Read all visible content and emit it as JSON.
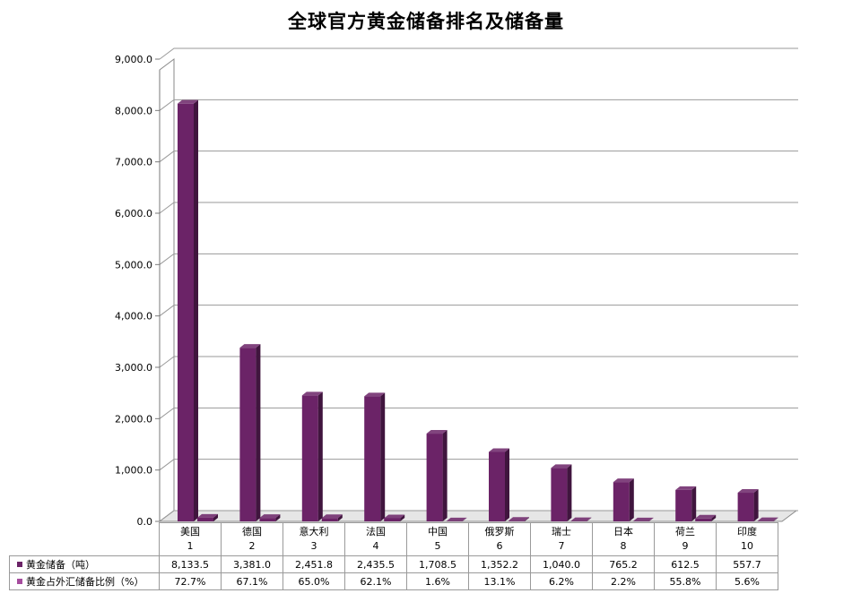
{
  "chart_data": {
    "type": "bar",
    "title": "全球官方黄金储备排名及储备量",
    "categories": [
      "美国",
      "德国",
      "意大利",
      "法国",
      "中国",
      "俄罗斯",
      "瑞士",
      "日本",
      "荷兰",
      "印度"
    ],
    "ranks": [
      "1",
      "2",
      "3",
      "4",
      "5",
      "6",
      "7",
      "8",
      "9",
      "10"
    ],
    "series": [
      {
        "name": "黄金储备（吨）",
        "values": [
          8133.5,
          3381.0,
          2451.8,
          2435.5,
          1708.5,
          1352.2,
          1040.0,
          765.2,
          612.5,
          557.7
        ],
        "labels": [
          "8,133.5",
          "3,381.0",
          "2,451.8",
          "2,435.5",
          "1,708.5",
          "1,352.2",
          "1,040.0",
          "765.2",
          "612.5",
          "557.7"
        ],
        "color": "#6b2367"
      },
      {
        "name": "黄金占外汇储备比例（%）",
        "values": [
          72.7,
          67.1,
          65.0,
          62.1,
          1.6,
          13.1,
          6.2,
          2.2,
          55.8,
          5.6
        ],
        "labels": [
          "72.7%",
          "67.1%",
          "65.0%",
          "62.1%",
          "1.6%",
          "13.1%",
          "6.2%",
          "2.2%",
          "55.8%",
          "5.6%"
        ],
        "color": "#a64d9e"
      }
    ],
    "ylim": [
      0,
      9000
    ],
    "yticks": [
      "0.0",
      "1,000.0",
      "2,000.0",
      "3,000.0",
      "4,000.0",
      "5,000.0",
      "6,000.0",
      "7,000.0",
      "8,000.0",
      "9,000.0"
    ],
    "grid": true,
    "legend": "data-table"
  }
}
